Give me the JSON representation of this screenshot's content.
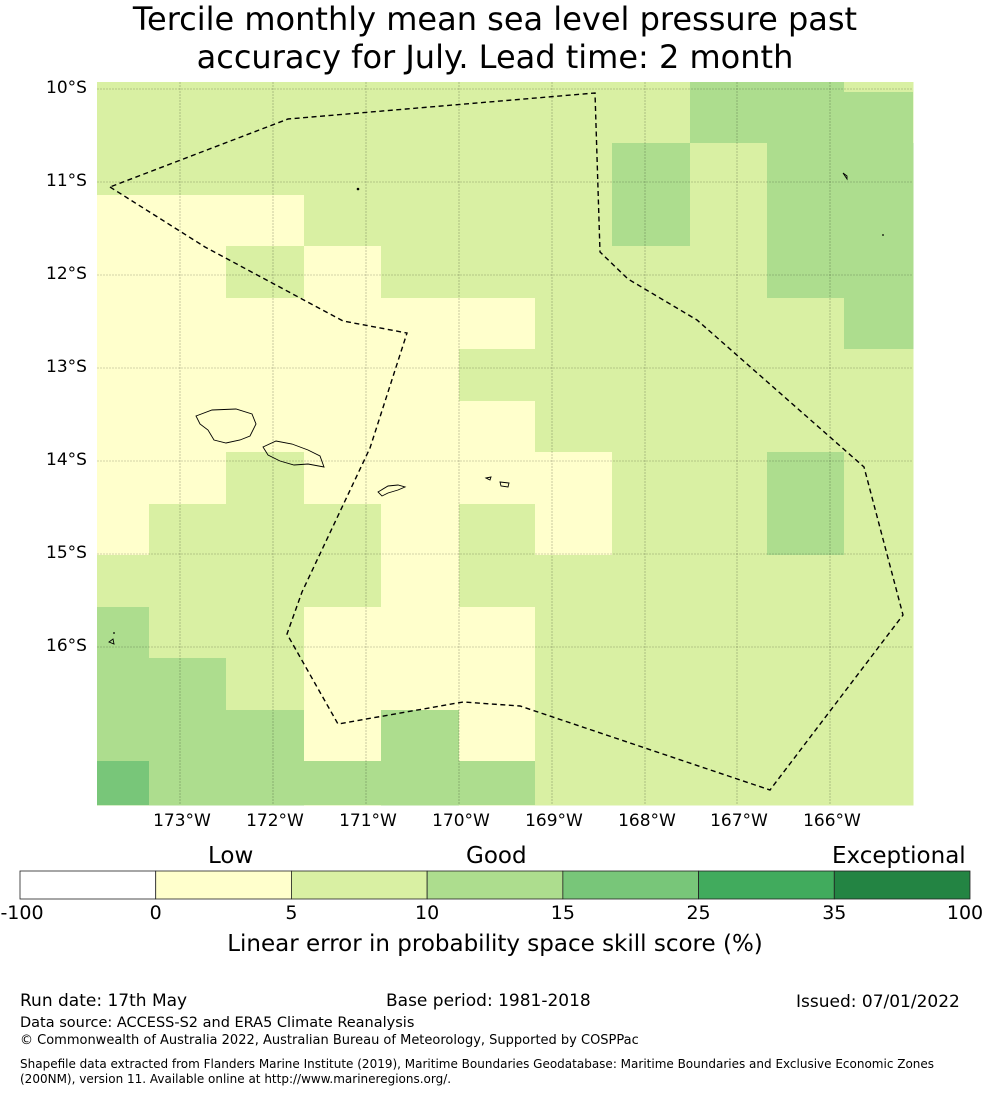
{
  "title": {
    "line1": "Tercile monthly mean sea level pressure past",
    "line2": "accuracy for July. Lead time: 2 month"
  },
  "map": {
    "lat_labels": [
      "10°S",
      "11°S",
      "12°S",
      "13°S",
      "14°S",
      "15°S",
      "16°S"
    ],
    "lon_labels": [
      "173°W",
      "172°W",
      "171°W",
      "170°W",
      "169°W",
      "168°W",
      "167°W",
      "166°W"
    ],
    "cell_colors": {
      "0": "#ffffff",
      "1": "#ffffcc",
      "2": "#d9f0a3",
      "3": "#addd8e",
      "4": "#78c679",
      "5": "#41ab5d",
      "6": "#238443"
    },
    "eez_boundary_style": "dashed",
    "grid": true
  },
  "legend": {
    "category_labels": [
      "Low",
      "Good",
      "Exceptional"
    ],
    "boundaries": [
      "-100",
      "0",
      "5",
      "10",
      "15",
      "25",
      "35",
      "100"
    ],
    "colors": [
      "#ffffff",
      "#ffffcc",
      "#d9f0a3",
      "#addd8e",
      "#78c679",
      "#41ab5d",
      "#238443"
    ],
    "title": "Linear error in probability space skill score (%)"
  },
  "footer": {
    "run_date": "Run date: 17th May",
    "base_period": "Base period: 1981-2018",
    "issued": "Issued: 07/01/2022",
    "data_source": "Data source: ACCESS-S2 and ERA5 Climate Reanalysis",
    "copyright": "© Commonwealth of Australia 2022, Australian Bureau of Meteorology, Supported by COSPPac",
    "shapefile_line1": "Shapefile data extracted from Flanders Marine Institute (2019), Maritime Boundaries Geodatabase: Maritime Boundaries and Exclusive Economic Zones",
    "shapefile_line2": "(200NM), version 11. Available online at http://www.marineregions.org/."
  }
}
